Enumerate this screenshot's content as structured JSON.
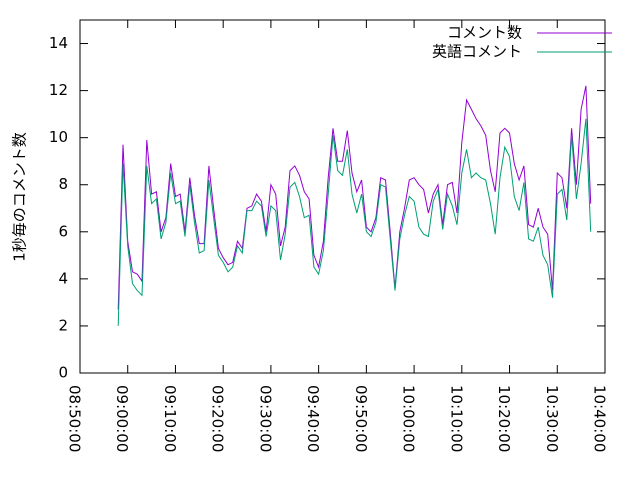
{
  "chart_data": {
    "type": "line",
    "y_label": "1秒毎のコメント数",
    "x": [
      "08:58:00",
      "08:59:00",
      "09:00:00",
      "09:01:00",
      "09:02:00",
      "09:03:00",
      "09:04:00",
      "09:05:00",
      "09:06:00",
      "09:07:00",
      "09:08:00",
      "09:09:00",
      "09:10:00",
      "09:11:00",
      "09:12:00",
      "09:13:00",
      "09:14:00",
      "09:15:00",
      "09:16:00",
      "09:17:00",
      "09:18:00",
      "09:19:00",
      "09:20:00",
      "09:21:00",
      "09:22:00",
      "09:23:00",
      "09:24:00",
      "09:25:00",
      "09:26:00",
      "09:27:00",
      "09:28:00",
      "09:29:00",
      "09:30:00",
      "09:31:00",
      "09:32:00",
      "09:33:00",
      "09:34:00",
      "09:35:00",
      "09:36:00",
      "09:37:00",
      "09:38:00",
      "09:39:00",
      "09:40:00",
      "09:41:00",
      "09:42:00",
      "09:43:00",
      "09:44:00",
      "09:45:00",
      "09:46:00",
      "09:47:00",
      "09:48:00",
      "09:49:00",
      "09:50:00",
      "09:51:00",
      "09:52:00",
      "09:53:00",
      "09:54:00",
      "09:55:00",
      "09:56:00",
      "09:57:00",
      "09:58:00",
      "09:59:00",
      "10:00:00",
      "10:01:00",
      "10:02:00",
      "10:03:00",
      "10:04:00",
      "10:05:00",
      "10:06:00",
      "10:07:00",
      "10:08:00",
      "10:09:00",
      "10:10:00",
      "10:11:00",
      "10:12:00",
      "10:13:00",
      "10:14:00",
      "10:15:00",
      "10:16:00",
      "10:17:00",
      "10:18:00",
      "10:19:00",
      "10:20:00",
      "10:21:00",
      "10:22:00",
      "10:23:00",
      "10:24:00",
      "10:25:00",
      "10:26:00",
      "10:27:00",
      "10:28:00",
      "10:29:00",
      "10:30:00",
      "10:31:00",
      "10:32:00",
      "10:33:00",
      "10:34:00",
      "10:35:00",
      "10:36:00",
      "10:37:00"
    ],
    "series": [
      {
        "name": "コメント数",
        "color": "#9400d3",
        "values": [
          2.7,
          9.7,
          5.6,
          4.3,
          4.2,
          3.9,
          9.9,
          7.6,
          7.7,
          6.0,
          6.6,
          8.9,
          7.5,
          7.6,
          6.0,
          8.3,
          6.7,
          5.5,
          5.5,
          8.8,
          7.0,
          5.3,
          4.9,
          4.6,
          4.7,
          5.6,
          5.3,
          7.0,
          7.1,
          7.6,
          7.3,
          6.0,
          8.0,
          7.6,
          5.4,
          6.2,
          8.6,
          8.8,
          8.4,
          7.7,
          7.4,
          5.0,
          4.5,
          5.6,
          8.3,
          10.4,
          9.0,
          9.0,
          10.3,
          8.5,
          7.7,
          8.2,
          6.2,
          6.0,
          6.6,
          8.3,
          8.2,
          6.0,
          3.6,
          6.0,
          7.0,
          8.2,
          8.3,
          8.0,
          7.8,
          6.8,
          7.6,
          8.0,
          6.3,
          8.0,
          8.1,
          6.8,
          9.8,
          11.6,
          11.2,
          10.8,
          10.5,
          10.1,
          8.6,
          7.7,
          10.2,
          10.4,
          10.2,
          8.9,
          8.2,
          8.8,
          6.3,
          6.2,
          7.0,
          6.2,
          5.9,
          3.5,
          8.5,
          8.3,
          7.0,
          10.4,
          8.0,
          11.2,
          12.2,
          7.2
        ]
      },
      {
        "name": "英語コメント",
        "color": "#009e73",
        "values": [
          2.0,
          8.9,
          5.4,
          3.8,
          3.5,
          3.3,
          8.8,
          7.2,
          7.4,
          5.7,
          6.4,
          8.5,
          7.2,
          7.3,
          5.8,
          8.0,
          6.4,
          5.1,
          5.2,
          8.2,
          6.6,
          5.0,
          4.7,
          4.3,
          4.5,
          5.4,
          5.1,
          6.9,
          6.9,
          7.3,
          7.1,
          5.8,
          7.1,
          6.9,
          4.8,
          5.9,
          7.9,
          8.1,
          7.5,
          6.6,
          6.7,
          4.5,
          4.2,
          5.2,
          7.6,
          10.1,
          8.6,
          8.4,
          9.5,
          7.6,
          6.8,
          7.6,
          6.0,
          5.8,
          6.4,
          8.0,
          7.9,
          5.7,
          3.5,
          5.7,
          6.7,
          7.5,
          7.3,
          6.2,
          5.9,
          5.8,
          7.3,
          7.8,
          6.1,
          7.6,
          7.1,
          6.3,
          8.5,
          9.5,
          8.3,
          8.5,
          8.3,
          8.2,
          7.2,
          5.9,
          8.3,
          9.6,
          9.2,
          7.5,
          6.9,
          8.1,
          5.7,
          5.6,
          6.2,
          5.0,
          4.6,
          3.2,
          7.6,
          7.8,
          6.5,
          10.1,
          7.4,
          8.9,
          10.8,
          6.0
        ]
      }
    ],
    "xlim": [
      "08:50:00",
      "10:40:00"
    ],
    "xticks": [
      "08:50:00",
      "09:00:00",
      "09:10:00",
      "09:20:00",
      "09:30:00",
      "09:40:00",
      "09:50:00",
      "10:00:00",
      "10:10:00",
      "10:20:00",
      "10:30:00",
      "10:40:00"
    ],
    "ylim": [
      0,
      15
    ],
    "yticks": [
      0,
      2,
      4,
      6,
      8,
      10,
      12,
      14
    ],
    "legend": "top-right"
  }
}
